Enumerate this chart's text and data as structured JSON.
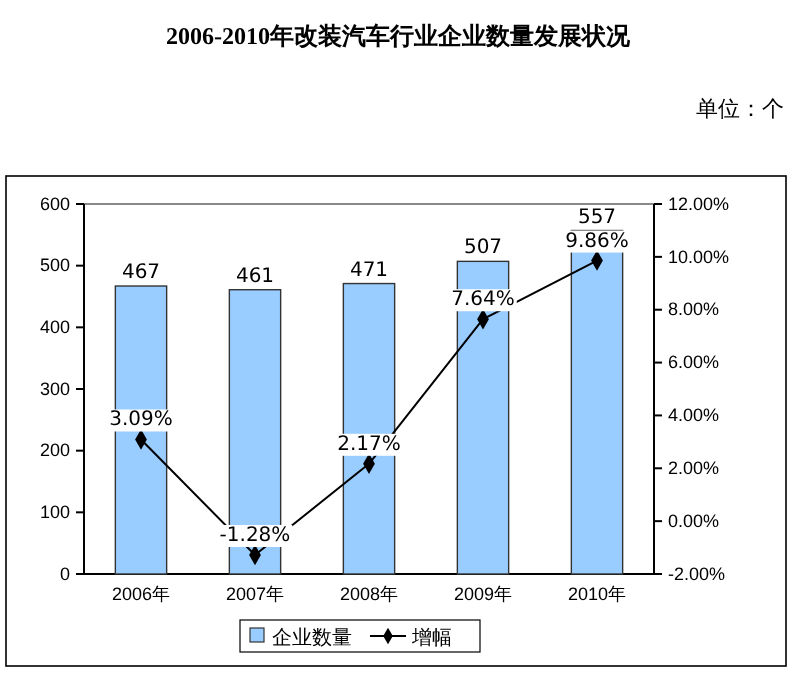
{
  "chart_data": {
    "type": "bar",
    "title": "2006-2010年改装汽车行业企业数量发展状况",
    "annotations": [
      "单位：个"
    ],
    "categories": [
      "2006年",
      "2007年",
      "2008年",
      "2009年",
      "2010年"
    ],
    "series": [
      {
        "name": "企业数量",
        "color": "#99ccff",
        "values": [
          467,
          461,
          471,
          507,
          557
        ],
        "value_labels": [
          "467",
          "461",
          "471",
          "507",
          "557"
        ]
      },
      {
        "name": "增幅",
        "type": "line",
        "axis": "y2",
        "color": "#000000",
        "values": [
          3.09,
          -1.28,
          2.17,
          7.64,
          9.86
        ],
        "value_labels": [
          "3.09%",
          "-1.28%",
          "2.17%",
          "7.64%",
          "9.86%"
        ],
        "marker": "diamond"
      }
    ],
    "ylim": [
      0,
      600
    ],
    "yticks": [
      0,
      100,
      200,
      300,
      400,
      500,
      600
    ],
    "y2lim": [
      -2,
      12
    ],
    "y2ticks": [
      {
        "value": -2,
        "label": "-2.00%"
      },
      {
        "value": 0,
        "label": "0.00%"
      },
      {
        "value": 2,
        "label": "2.00%"
      },
      {
        "value": 4,
        "label": "4.00%"
      },
      {
        "value": 6,
        "label": "6.00%"
      },
      {
        "value": 8,
        "label": "8.00%"
      },
      {
        "value": 10,
        "label": "10.00%"
      },
      {
        "value": 12,
        "label": "12.00%"
      }
    ],
    "legend": "bottom",
    "grid": false
  }
}
